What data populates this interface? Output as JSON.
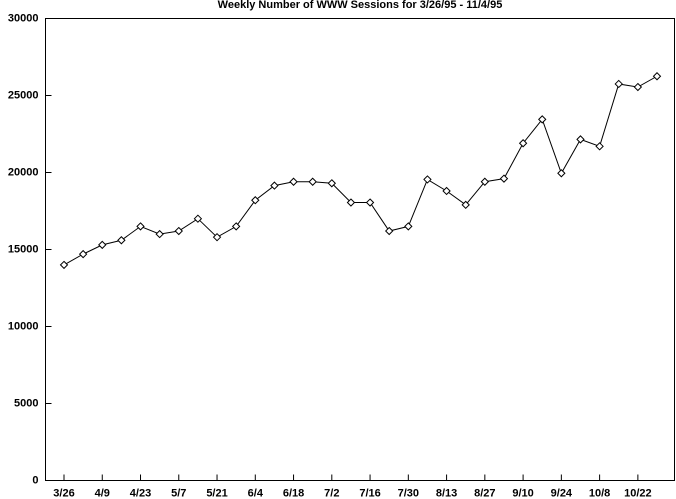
{
  "chart_data": {
    "type": "line",
    "title": "Weekly Number of WWW Sessions for 3/26/95 - 11/4/95",
    "categories": [
      "3/26",
      null,
      "4/9",
      null,
      "4/23",
      null,
      "5/7",
      null,
      "5/21",
      null,
      "6/4",
      null,
      "6/18",
      null,
      "7/2",
      null,
      "7/16",
      null,
      "7/30",
      null,
      "8/13",
      null,
      "8/27",
      null,
      "9/10",
      null,
      "9/24",
      null,
      "10/8",
      null,
      "10/22",
      null
    ],
    "values": [
      14000,
      14700,
      15300,
      15600,
      16500,
      16000,
      16200,
      17000,
      15800,
      16500,
      18200,
      19150,
      19400,
      19400,
      19300,
      18050,
      18050,
      16200,
      16500,
      19550,
      18800,
      17900,
      19400,
      19600,
      21900,
      23450,
      19950,
      22150,
      21700,
      25750,
      25550,
      26250
    ],
    "color": "#000000",
    "ylim": [
      0,
      30000
    ],
    "yticks": [
      0,
      5000,
      10000,
      15000,
      20000,
      25000,
      30000
    ],
    "grid": false
  }
}
